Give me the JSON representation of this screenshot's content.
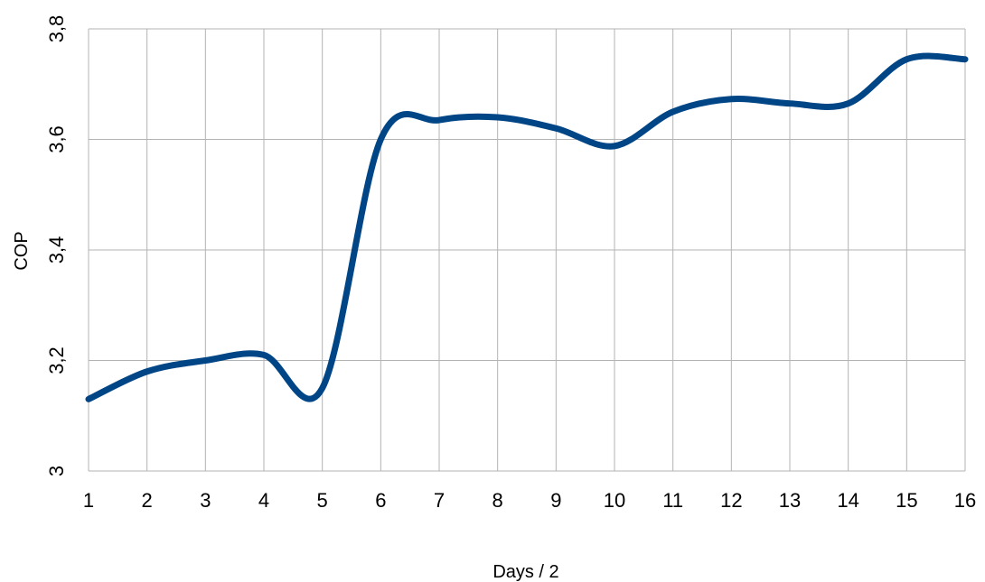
{
  "chart_data": {
    "type": "line",
    "title": "",
    "xlabel": "Days / 2",
    "ylabel": "COP",
    "x": [
      1,
      2,
      3,
      4,
      5,
      6,
      7,
      8,
      9,
      10,
      11,
      12,
      13,
      14,
      15,
      16
    ],
    "x_ticks": [
      "1",
      "2",
      "3",
      "4",
      "5",
      "6",
      "7",
      "8",
      "9",
      "10",
      "11",
      "12",
      "13",
      "14",
      "15",
      "16"
    ],
    "y_ticks": [
      "3",
      "3,2",
      "3,4",
      "3,6",
      "3,8"
    ],
    "xlim": [
      1,
      16
    ],
    "ylim": [
      3,
      3.8
    ],
    "grid": true,
    "smooth": true,
    "series": [
      {
        "color": "#004586",
        "values": [
          3.13,
          3.18,
          3.2,
          3.21,
          3.15,
          3.6,
          3.635,
          3.64,
          3.62,
          3.588,
          3.65,
          3.673,
          3.665,
          3.665,
          3.745,
          3.745
        ]
      }
    ]
  }
}
